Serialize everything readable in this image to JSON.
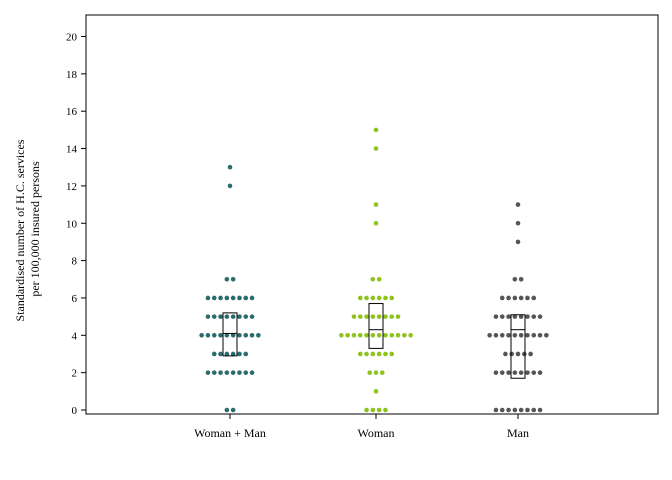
{
  "chart_data": {
    "type": "scatter",
    "subtype": "dot-strip-with-boxplot",
    "ylabel_lines": [
      "Standardised number of H.C. services",
      "per 100,000 insured persons"
    ],
    "ylim": [
      0,
      21
    ],
    "yticks": [
      0,
      2,
      4,
      6,
      8,
      10,
      12,
      14,
      16,
      18,
      20
    ],
    "ytick_labels": [
      "0",
      "2",
      "4",
      "6",
      "8",
      "10",
      "12",
      "14",
      "16",
      "18",
      "20"
    ],
    "grid": false,
    "categories": [
      "Woman + Man",
      "Woman",
      "Man"
    ],
    "series": [
      {
        "category": "Woman + Man",
        "color": "#2a6b6b",
        "levels": [
          {
            "y": 0,
            "count": 2
          },
          {
            "y": 2,
            "count": 8
          },
          {
            "y": 3,
            "count": 6
          },
          {
            "y": 4,
            "count": 10
          },
          {
            "y": 5,
            "count": 8
          },
          {
            "y": 6,
            "count": 8
          },
          {
            "y": 7,
            "count": 2
          },
          {
            "y": 12,
            "count": 1
          },
          {
            "y": 13,
            "count": 1
          }
        ],
        "box": {
          "q1": 2.9,
          "median": 4.1,
          "q3": 5.2
        }
      },
      {
        "category": "Woman",
        "color": "#8fc21c",
        "levels": [
          {
            "y": 0,
            "count": 4
          },
          {
            "y": 1,
            "count": 1
          },
          {
            "y": 2,
            "count": 3
          },
          {
            "y": 3,
            "count": 6
          },
          {
            "y": 4,
            "count": 12
          },
          {
            "y": 5,
            "count": 8
          },
          {
            "y": 6,
            "count": 6
          },
          {
            "y": 7,
            "count": 2
          },
          {
            "y": 10,
            "count": 1
          },
          {
            "y": 11,
            "count": 1
          },
          {
            "y": 14,
            "count": 1
          },
          {
            "y": 15,
            "count": 1
          }
        ],
        "box": {
          "q1": 3.3,
          "median": 4.3,
          "q3": 5.7
        }
      },
      {
        "category": "Man",
        "color": "#555555",
        "levels": [
          {
            "y": 0,
            "count": 8
          },
          {
            "y": 2,
            "count": 8
          },
          {
            "y": 3,
            "count": 5
          },
          {
            "y": 4,
            "count": 10
          },
          {
            "y": 5,
            "count": 8
          },
          {
            "y": 6,
            "count": 6
          },
          {
            "y": 7,
            "count": 2
          },
          {
            "y": 9,
            "count": 1
          },
          {
            "y": 10,
            "count": 1
          },
          {
            "y": 11,
            "count": 1
          }
        ],
        "box": {
          "q1": 1.7,
          "median": 4.3,
          "q3": 5.1
        }
      }
    ]
  }
}
